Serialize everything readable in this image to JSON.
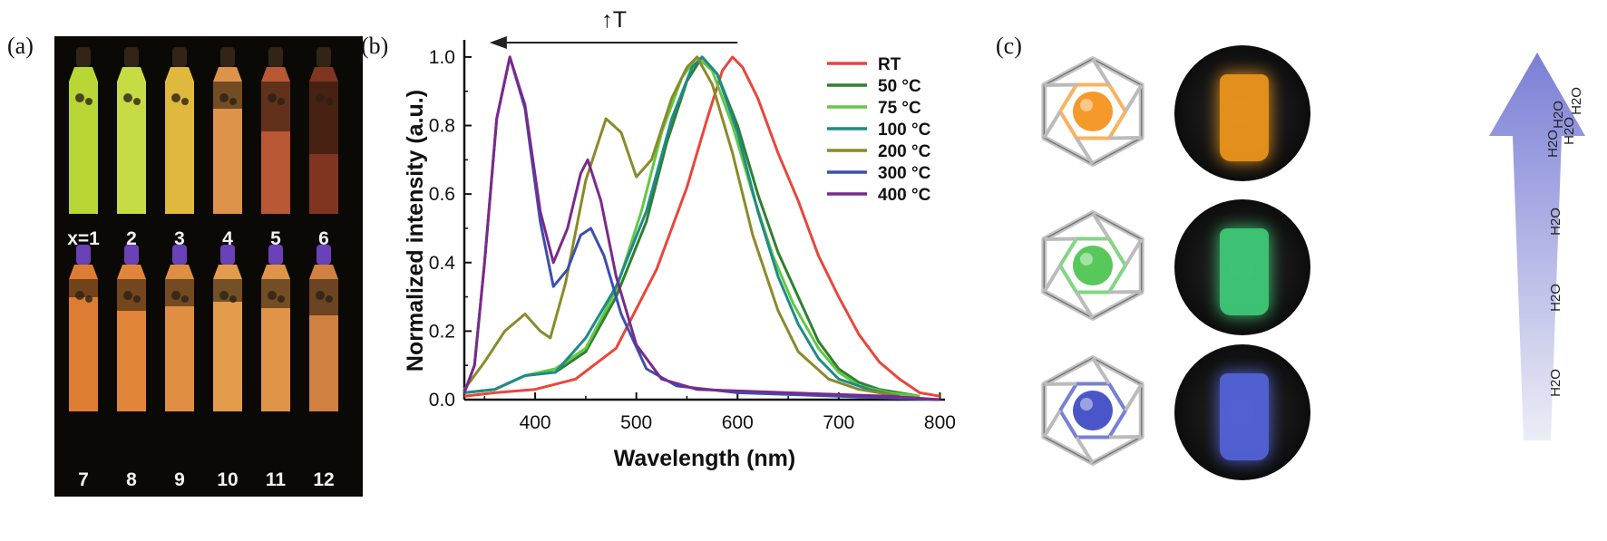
{
  "panels": {
    "a": "(a)",
    "b": "(b)",
    "c": "(c)"
  },
  "photo_a": {
    "vial_labels": [
      "x=1",
      "2",
      "3",
      "4",
      "5",
      "6",
      "7",
      "8",
      "9",
      "10",
      "11",
      "12"
    ],
    "top_row_colors": [
      "#c8e83a",
      "#d8ee4a",
      "#f4c843",
      "#f0a050",
      "#c86038",
      "#8a3a22"
    ],
    "bottom_row_colors": [
      "#f08838",
      "#f49040",
      "#f39a48",
      "#f6a852",
      "#f3a14d",
      "#e28b45"
    ],
    "bottom_row_cap_color": "#7a4cd8"
  },
  "chart_data": {
    "type": "line",
    "title": "",
    "xlabel": "Wavelength (nm)",
    "ylabel": "Normalized intensity (a.u.)",
    "xlim": [
      330,
      805
    ],
    "ylim": [
      0,
      1.05
    ],
    "xticks": [
      400,
      500,
      600,
      700,
      800
    ],
    "yticks": [
      0.0,
      0.2,
      0.4,
      0.6,
      0.8,
      1.0
    ],
    "annotation": "↑T",
    "legend_position": "top-right",
    "series": [
      {
        "name": "RT",
        "color": "#e8473a",
        "points": [
          [
            330,
            0.01
          ],
          [
            360,
            0.02
          ],
          [
            400,
            0.03
          ],
          [
            440,
            0.06
          ],
          [
            480,
            0.15
          ],
          [
            520,
            0.38
          ],
          [
            550,
            0.62
          ],
          [
            570,
            0.82
          ],
          [
            585,
            0.96
          ],
          [
            595,
            1.0
          ],
          [
            605,
            0.97
          ],
          [
            620,
            0.88
          ],
          [
            640,
            0.72
          ],
          [
            660,
            0.58
          ],
          [
            680,
            0.42
          ],
          [
            700,
            0.3
          ],
          [
            720,
            0.19
          ],
          [
            740,
            0.11
          ],
          [
            760,
            0.06
          ],
          [
            780,
            0.02
          ],
          [
            800,
            0.01
          ]
        ]
      },
      {
        "name": "50 °C",
        "color": "#2f7f30",
        "points": [
          [
            330,
            0.02
          ],
          [
            360,
            0.03
          ],
          [
            390,
            0.07
          ],
          [
            420,
            0.08
          ],
          [
            450,
            0.14
          ],
          [
            480,
            0.3
          ],
          [
            510,
            0.52
          ],
          [
            530,
            0.75
          ],
          [
            550,
            0.93
          ],
          [
            565,
            1.0
          ],
          [
            580,
            0.95
          ],
          [
            600,
            0.8
          ],
          [
            620,
            0.6
          ],
          [
            640,
            0.43
          ],
          [
            660,
            0.3
          ],
          [
            680,
            0.17
          ],
          [
            700,
            0.09
          ],
          [
            720,
            0.05
          ],
          [
            740,
            0.03
          ],
          [
            780,
            0.01
          ]
        ]
      },
      {
        "name": "75 °C",
        "color": "#62c840",
        "points": [
          [
            330,
            0.02
          ],
          [
            360,
            0.03
          ],
          [
            390,
            0.07
          ],
          [
            420,
            0.09
          ],
          [
            450,
            0.15
          ],
          [
            480,
            0.32
          ],
          [
            505,
            0.55
          ],
          [
            525,
            0.78
          ],
          [
            545,
            0.94
          ],
          [
            560,
            1.0
          ],
          [
            575,
            0.96
          ],
          [
            595,
            0.8
          ],
          [
            615,
            0.6
          ],
          [
            635,
            0.42
          ],
          [
            655,
            0.28
          ],
          [
            680,
            0.15
          ],
          [
            700,
            0.08
          ],
          [
            720,
            0.04
          ],
          [
            750,
            0.02
          ],
          [
            780,
            0.01
          ]
        ]
      },
      {
        "name": "100 °C",
        "color": "#1f8a8a",
        "points": [
          [
            330,
            0.02
          ],
          [
            360,
            0.03
          ],
          [
            390,
            0.07
          ],
          [
            420,
            0.08
          ],
          [
            450,
            0.18
          ],
          [
            480,
            0.33
          ],
          [
            510,
            0.55
          ],
          [
            535,
            0.82
          ],
          [
            555,
            0.97
          ],
          [
            565,
            1.0
          ],
          [
            580,
            0.95
          ],
          [
            600,
            0.78
          ],
          [
            620,
            0.55
          ],
          [
            640,
            0.36
          ],
          [
            660,
            0.22
          ],
          [
            680,
            0.12
          ],
          [
            700,
            0.06
          ],
          [
            730,
            0.03
          ],
          [
            760,
            0.01
          ]
        ]
      },
      {
        "name": "200 °C",
        "color": "#8a8a2a",
        "points": [
          [
            330,
            0.03
          ],
          [
            350,
            0.11
          ],
          [
            370,
            0.2
          ],
          [
            390,
            0.25
          ],
          [
            405,
            0.2
          ],
          [
            415,
            0.18
          ],
          [
            430,
            0.34
          ],
          [
            450,
            0.64
          ],
          [
            470,
            0.82
          ],
          [
            485,
            0.78
          ],
          [
            500,
            0.65
          ],
          [
            515,
            0.7
          ],
          [
            535,
            0.88
          ],
          [
            550,
            0.97
          ],
          [
            560,
            1.0
          ],
          [
            575,
            0.92
          ],
          [
            595,
            0.72
          ],
          [
            615,
            0.48
          ],
          [
            640,
            0.26
          ],
          [
            660,
            0.14
          ],
          [
            690,
            0.06
          ],
          [
            720,
            0.03
          ],
          [
            760,
            0.01
          ]
        ]
      },
      {
        "name": "300 °C",
        "color": "#3b4fb0",
        "points": [
          [
            330,
            0.02
          ],
          [
            340,
            0.1
          ],
          [
            350,
            0.4
          ],
          [
            362,
            0.82
          ],
          [
            375,
            1.0
          ],
          [
            390,
            0.85
          ],
          [
            405,
            0.52
          ],
          [
            418,
            0.33
          ],
          [
            432,
            0.38
          ],
          [
            445,
            0.48
          ],
          [
            455,
            0.5
          ],
          [
            468,
            0.42
          ],
          [
            485,
            0.25
          ],
          [
            510,
            0.09
          ],
          [
            540,
            0.04
          ],
          [
            600,
            0.02
          ],
          [
            700,
            0.01
          ],
          [
            800,
            0.0
          ]
        ]
      },
      {
        "name": "400 °C",
        "color": "#7a2a8a",
        "points": [
          [
            330,
            0.02
          ],
          [
            340,
            0.1
          ],
          [
            350,
            0.4
          ],
          [
            362,
            0.82
          ],
          [
            375,
            1.0
          ],
          [
            390,
            0.86
          ],
          [
            405,
            0.55
          ],
          [
            418,
            0.4
          ],
          [
            432,
            0.5
          ],
          [
            445,
            0.66
          ],
          [
            452,
            0.7
          ],
          [
            465,
            0.58
          ],
          [
            480,
            0.36
          ],
          [
            500,
            0.16
          ],
          [
            525,
            0.06
          ],
          [
            560,
            0.03
          ],
          [
            650,
            0.02
          ],
          [
            750,
            0.01
          ],
          [
            800,
            0.0
          ]
        ]
      }
    ]
  },
  "panel_c": {
    "ball_colors": [
      "#f59a2a",
      "#58c85a",
      "#4a56c8"
    ],
    "photo_colors": [
      "#f39a1c",
      "#41d07a",
      "#5566e0"
    ],
    "arrow_labels": [
      "H2O",
      "H2O",
      "H2O",
      "H2O",
      "H2O",
      "H2O",
      "H2O"
    ]
  }
}
